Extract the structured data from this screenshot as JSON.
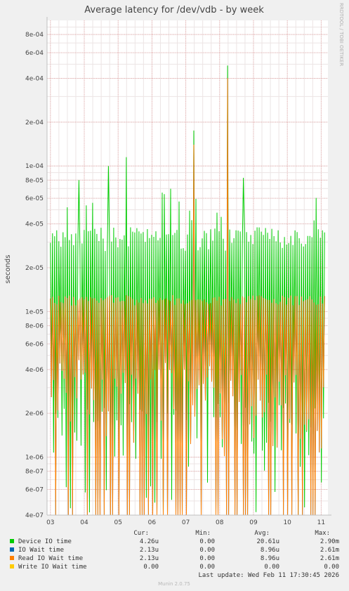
{
  "chart_data": {
    "type": "line",
    "title": "Average latency for /dev/vdb - by week",
    "ylabel": "seconds",
    "xlabel": "",
    "y_scale": "log",
    "ylim": [
      4e-07,
      0.001
    ],
    "y_ticks": [
      {
        "value": 4e-07,
        "label": "4e-07"
      },
      {
        "value": 6e-07,
        "label": "6e-07"
      },
      {
        "value": 8e-07,
        "label": "8e-07"
      },
      {
        "value": 1e-06,
        "label": "1e-06"
      },
      {
        "value": 2e-06,
        "label": "2e-06"
      },
      {
        "value": 4e-06,
        "label": "4e-06"
      },
      {
        "value": 6e-06,
        "label": "6e-06"
      },
      {
        "value": 8e-06,
        "label": "8e-06"
      },
      {
        "value": 1e-05,
        "label": "1e-05"
      },
      {
        "value": 2e-05,
        "label": "2e-05"
      },
      {
        "value": 4e-05,
        "label": "4e-05"
      },
      {
        "value": 6e-05,
        "label": "6e-05"
      },
      {
        "value": 8e-05,
        "label": "8e-05"
      },
      {
        "value": 0.0001,
        "label": "1e-04"
      },
      {
        "value": 0.0002,
        "label": "2e-04"
      },
      {
        "value": 0.0004,
        "label": "4e-04"
      },
      {
        "value": 0.0006,
        "label": "6e-04"
      },
      {
        "value": 0.0008,
        "label": "8e-04"
      }
    ],
    "x_ticks": [
      {
        "value": 3,
        "label": "03"
      },
      {
        "value": 4,
        "label": "04"
      },
      {
        "value": 5,
        "label": "05"
      },
      {
        "value": 6,
        "label": "06"
      },
      {
        "value": 7,
        "label": "07"
      },
      {
        "value": 8,
        "label": "08"
      },
      {
        "value": 9,
        "label": "09"
      },
      {
        "value": 10,
        "label": "10"
      },
      {
        "value": 11,
        "label": "11"
      }
    ],
    "xlim": [
      2.9,
      11.2
    ],
    "grid": true,
    "series": [
      {
        "name": "Device IO time",
        "color": "#00cc00",
        "approx_range": [
          2.6e-05,
          0.00012
        ],
        "peaks": [
          {
            "x": 3.85,
            "y": 8e-05
          },
          {
            "x": 4.72,
            "y": 0.0001
          },
          {
            "x": 5.25,
            "y": 0.000115
          },
          {
            "x": 7.25,
            "y": 0.000175
          },
          {
            "x": 8.22,
            "y": 0.00049
          },
          {
            "x": 8.7,
            "y": 8.3e-05
          }
        ]
      },
      {
        "name": "IO Wait time",
        "color": "#0066b3",
        "approx_range": [
          4e-07,
          1.3e-05
        ]
      },
      {
        "name": "Read IO Wait time",
        "color": "#ff8000",
        "approx_range": [
          4e-07,
          1.3e-05
        ],
        "peaks": [
          {
            "x": 7.25,
            "y": 0.00014
          },
          {
            "x": 8.22,
            "y": 0.0004
          }
        ]
      },
      {
        "name": "Write IO Wait time",
        "color": "#ffcc00",
        "approx_range": [
          0,
          0
        ]
      }
    ]
  },
  "side_label": "RRDTOOL / TOBI OETIKER",
  "legend": {
    "headers": {
      "cur": "Cur:",
      "min": "Min:",
      "avg": "Avg:",
      "max": "Max:"
    },
    "rows": [
      {
        "name": "Device IO time",
        "color": "#00cc00",
        "cur": "4.26u",
        "min": "0.00",
        "avg": "20.61u",
        "max": "2.90m"
      },
      {
        "name": "IO Wait time",
        "color": "#0066b3",
        "cur": "2.13u",
        "min": "0.00",
        "avg": "8.96u",
        "max": "2.61m"
      },
      {
        "name": "Read IO Wait time",
        "color": "#ff8000",
        "cur": "2.13u",
        "min": "0.00",
        "avg": "8.96u",
        "max": "2.61m"
      },
      {
        "name": "Write IO Wait time",
        "color": "#ffcc00",
        "cur": "0.00",
        "min": "0.00",
        "avg": "0.00",
        "max": "0.00"
      }
    ]
  },
  "last_update": "Last update: Wed Feb 11 17:30:45 2026",
  "footer": "Munin 2.0.75"
}
